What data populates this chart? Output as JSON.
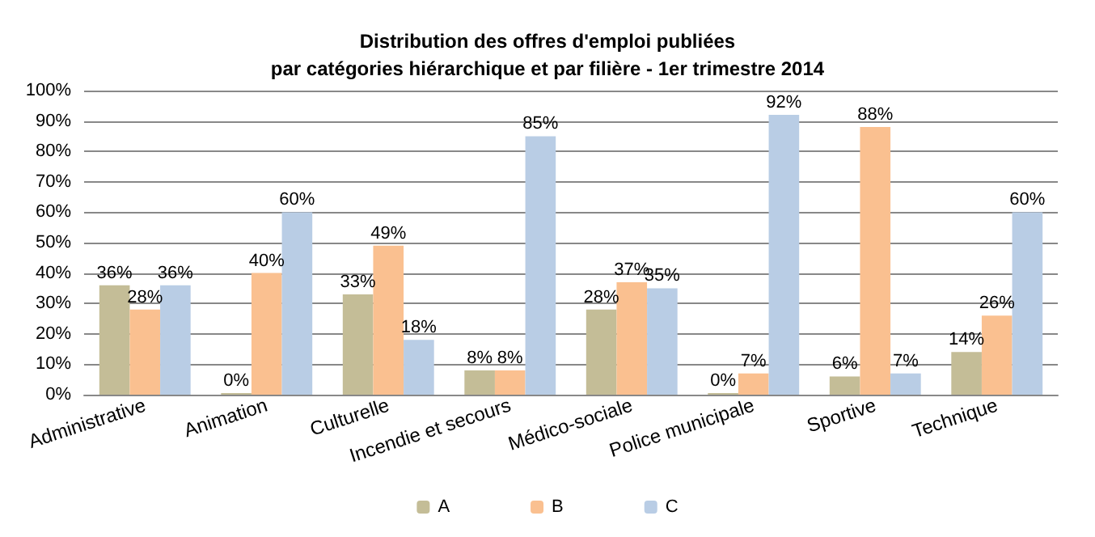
{
  "chart_data": {
    "type": "bar",
    "title": "Distribution des offres d'emploi publiées\npar catégories hiérarchique et par filière - 1er trimestre 2014",
    "categories": [
      "Administrative",
      "Animation",
      "Culturelle",
      "Incendie et secours",
      "Médico-sociale",
      "Police municipale",
      "Sportive",
      "Technique"
    ],
    "series": [
      {
        "name": "A",
        "color": "#c4bd97",
        "values": [
          36,
          0,
          33,
          8,
          28,
          0,
          6,
          14
        ],
        "value_labels": [
          "36%",
          "0%",
          "33%",
          "8%",
          "28%",
          "0%",
          "6%",
          "14%"
        ]
      },
      {
        "name": "B",
        "color": "#fac090",
        "values": [
          28,
          40,
          49,
          8,
          37,
          7,
          88,
          26
        ],
        "value_labels": [
          "28%",
          "40%",
          "49%",
          "8%",
          "37%",
          "7%",
          "88%",
          "26%"
        ]
      },
      {
        "name": "C",
        "color": "#b9cde5",
        "values": [
          36,
          60,
          18,
          85,
          35,
          92,
          7,
          60
        ],
        "value_labels": [
          "36%",
          "60%",
          "18%",
          "85%",
          "35%",
          "92%",
          "7%",
          "60%"
        ]
      }
    ],
    "ylim": [
      0,
      100
    ],
    "yticks": [
      {
        "value": 0,
        "label": "0%"
      },
      {
        "value": 10,
        "label": "10%"
      },
      {
        "value": 20,
        "label": "20%"
      },
      {
        "value": 30,
        "label": "30%"
      },
      {
        "value": 40,
        "label": "40%"
      },
      {
        "value": 50,
        "label": "50%"
      },
      {
        "value": 60,
        "label": "60%"
      },
      {
        "value": 70,
        "label": "70%"
      },
      {
        "value": 80,
        "label": "80%"
      },
      {
        "value": 90,
        "label": "90%"
      },
      {
        "value": 100,
        "label": "100%"
      }
    ],
    "grid": true,
    "legend": "bottom"
  }
}
